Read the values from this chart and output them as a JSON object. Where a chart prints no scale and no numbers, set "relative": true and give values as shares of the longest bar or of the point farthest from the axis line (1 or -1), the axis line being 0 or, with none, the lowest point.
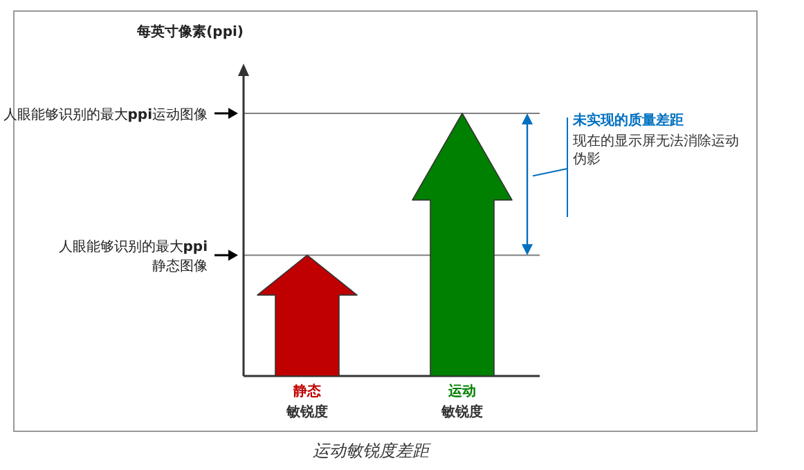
{
  "chart_data": {
    "type": "bar",
    "title": "运动敏锐度差距",
    "relative": true,
    "categories": [
      "静态",
      "运动"
    ],
    "values": [
      0.46,
      1
    ],
    "colors": [
      "#c00000",
      "#008000"
    ],
    "ref_lines": [
      {
        "axis": "y",
        "value": 1,
        "label": "人眼能够识别的最大**ppi**运动图像",
        "color": "#808080"
      },
      {
        "axis": "y",
        "value": 0.46,
        "label": "人眼能够识别的最大**ppi**\n静态图像",
        "color": "#808080"
      }
    ],
    "annotations": [
      "每英寸像素(ppi)",
      "未实现的质量差距",
      "现在的显示屏无法消除运动伪影",
      "敏锐度",
      "敏锐度"
    ]
  }
}
